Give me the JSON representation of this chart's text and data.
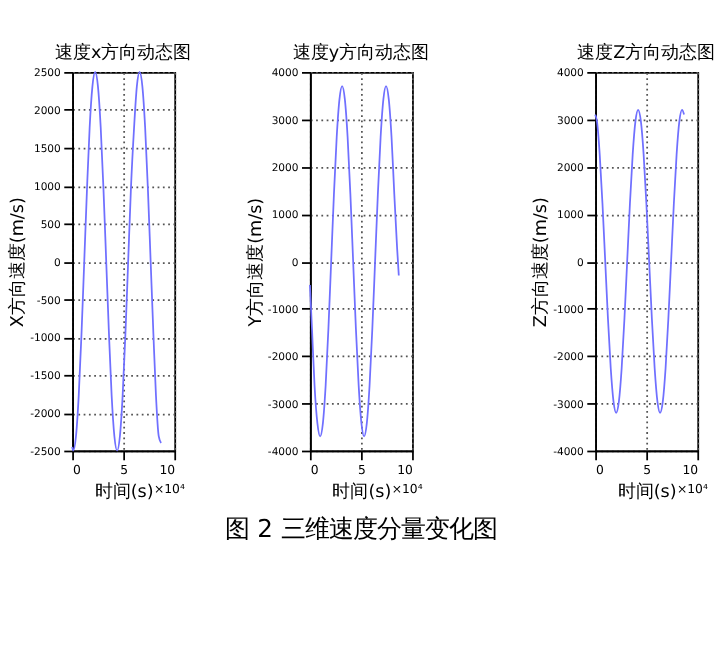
{
  "chart_data": [
    {
      "type": "line",
      "title": "速度x方向动态图",
      "xlabel": "时间(s)",
      "ylabel": "X方向速度(m/s)",
      "annotations": [
        "×10⁴"
      ],
      "xlim": [
        0,
        10
      ],
      "xticks": [
        0,
        5,
        10
      ],
      "ylim": [
        -2500,
        2500
      ],
      "yticks": [
        -2500,
        -2000,
        -1500,
        -1000,
        -500,
        0,
        500,
        1000,
        1500,
        2000,
        2500
      ],
      "grid": true,
      "line_style": "solid",
      "series": [
        {
          "color": "#7070ff",
          "x": [
            0,
            0.1,
            0.37,
            0.64,
            0.91,
            1.18,
            1.45,
            1.71,
            1.98,
            2.25,
            2.52,
            2.79,
            3.06,
            3.33,
            3.6,
            3.86,
            4.13,
            4.4,
            4.67,
            4.94,
            5.21,
            5.48,
            5.75,
            6.06,
            6.33,
            6.6,
            6.87,
            7.14,
            7.41,
            7.68,
            7.95,
            8.2,
            8.47,
            8.7
          ],
          "values": [
            -2450,
            -2500,
            -2310,
            -1770,
            -960,
            0,
            960,
            1770,
            2310,
            2500,
            2310,
            1770,
            960,
            0,
            -960,
            -1770,
            -2310,
            -2500,
            -2310,
            -1770,
            -960,
            0,
            960,
            1770,
            2310,
            2500,
            2310,
            1770,
            960,
            0,
            -960,
            -1770,
            -2310,
            -2400
          ]
        }
      ]
    },
    {
      "type": "line",
      "title": "速度y方向动态图",
      "xlabel": "时间(s)",
      "ylabel": "Y方向速度(m/s)",
      "annotations": [
        "×10⁴",
        "图 2  三维速度分量变化图"
      ],
      "xlim": [
        0,
        10
      ],
      "xticks": [
        0,
        5,
        10
      ],
      "ylim": [
        -4000,
        4000
      ],
      "yticks": [
        -4000,
        -3000,
        -2000,
        -1000,
        0,
        1000,
        2000,
        3000,
        4000
      ],
      "grid": true,
      "line_style": "solid",
      "series": [
        {
          "color": "#7070ff",
          "x": [
            0,
            0.2,
            0.45,
            0.73,
            1.0,
            1.27,
            1.54,
            1.81,
            2.08,
            2.35,
            2.62,
            2.89,
            3.15,
            3.42,
            3.69,
            3.96,
            4.23,
            4.5,
            4.77,
            5.04,
            5.3,
            5.57,
            5.84,
            6.11,
            6.38,
            6.65,
            6.92,
            7.19,
            7.45,
            7.72,
            7.99,
            8.26,
            8.53,
            8.7
          ],
          "values": [
            -500,
            -1420,
            -2620,
            -3420,
            -3700,
            -3420,
            -2620,
            -1420,
            0,
            1420,
            2620,
            3420,
            3700,
            3420,
            2620,
            1420,
            0,
            -1420,
            -2620,
            -3420,
            -3700,
            -3420,
            -2620,
            -1420,
            0,
            1420,
            2620,
            3420,
            3700,
            3420,
            2620,
            1420,
            300,
            -300
          ]
        }
      ]
    },
    {
      "type": "line",
      "title": "速度Z方向动态图",
      "xlabel": "时间(s)",
      "ylabel": "Z方向速度(m/s)",
      "annotations": [
        "×10⁴"
      ],
      "xlim": [
        0,
        10
      ],
      "xticks": [
        0,
        5,
        10
      ],
      "ylim": [
        -4000,
        4000
      ],
      "yticks": [
        -4000,
        -3000,
        -2000,
        -1000,
        0,
        1000,
        2000,
        3000,
        4000
      ],
      "grid": true,
      "line_style": "solid",
      "series": [
        {
          "color": "#7070ff",
          "x": [
            0,
            0.17,
            0.44,
            0.71,
            0.98,
            1.25,
            1.52,
            1.79,
            2.05,
            2.32,
            2.59,
            2.86,
            3.13,
            3.4,
            3.67,
            3.94,
            4.2,
            4.47,
            4.74,
            5.01,
            5.28,
            5.55,
            5.82,
            6.09,
            6.35,
            6.62,
            6.89,
            7.16,
            7.43,
            7.7,
            7.97,
            8.24,
            8.5,
            8.7
          ],
          "values": [
            3100,
            2960,
            2260,
            1220,
            0,
            -1220,
            -2260,
            -2960,
            -3200,
            -2960,
            -2260,
            -1220,
            0,
            1220,
            2260,
            2960,
            3200,
            2960,
            2260,
            1220,
            0,
            -1220,
            -2260,
            -2960,
            -3200,
            -2960,
            -2260,
            -1220,
            0,
            1220,
            2260,
            2960,
            3200,
            3100
          ]
        }
      ]
    }
  ]
}
